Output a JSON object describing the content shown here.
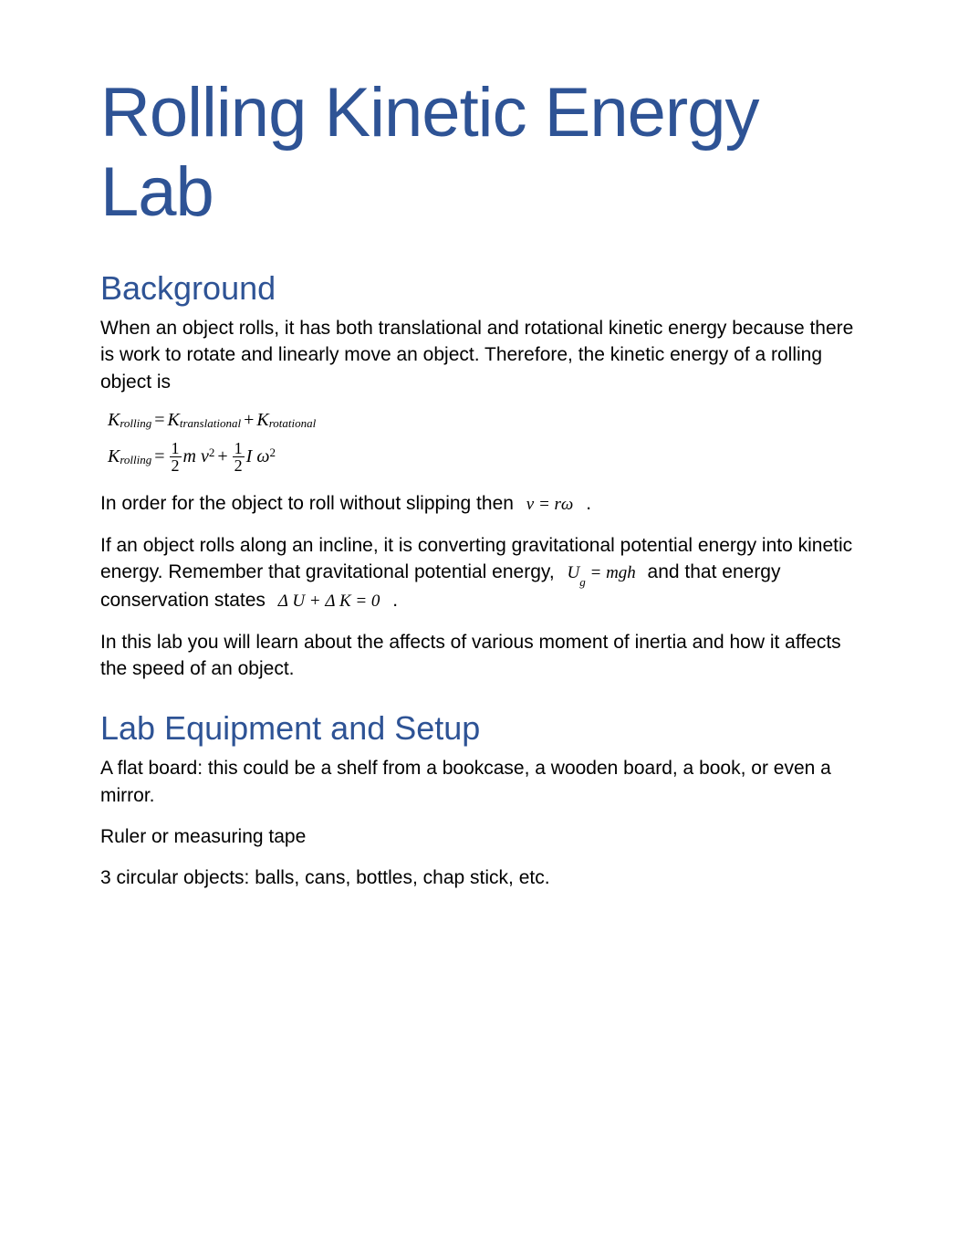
{
  "colors": {
    "heading": "#2e5395",
    "text": "#000000",
    "background": "#ffffff"
  },
  "typography": {
    "title_fontsize": 76,
    "heading_fontsize": 36,
    "body_fontsize": 21,
    "math_fontsize": 20
  },
  "title": "Rolling Kinetic Energy Lab",
  "sections": {
    "background": {
      "heading": "Background",
      "p1": "When an object rolls, it has both translational and rotational kinetic energy because there is work to rotate and linearly move an object. Therefore, the kinetic energy of a rolling object is",
      "eq1": {
        "lhs_var": "K",
        "lhs_sub": "rolling",
        "rhs_a_var": "K",
        "rhs_a_sub": "translational",
        "rhs_b_var": "K",
        "rhs_b_sub": "rotational"
      },
      "eq2": {
        "lhs_var": "K",
        "lhs_sub": "rolling",
        "t1_num": "1",
        "t1_den": "2",
        "t1_sym": "m v",
        "t1_pow": "2",
        "t2_num": "1",
        "t2_den": "2",
        "t2_sym": "I ω",
        "t2_pow": "2"
      },
      "p2_a": "In order for the object to roll without slipping then",
      "p2_math": "v = rω",
      "p2_b": ".",
      "p3_a": "If an object rolls along an incline, it is converting gravitational potential energy into kinetic energy. Remember that gravitational potential energy,",
      "p3_math1_var": "U",
      "p3_math1_sub": "g",
      "p3_math1_rhs": "= mgh",
      "p3_b": "and that energy conservation states",
      "p3_math2": "Δ U + Δ K = 0",
      "p3_c": ".",
      "p4": "In this lab you will learn about the affects of various moment of inertia and how it affects the speed of an object."
    },
    "equipment": {
      "heading": "Lab Equipment and Setup",
      "items": {
        "i1": "A flat board: this could be a shelf from a bookcase, a wooden board, a book, or even a mirror.",
        "i2": "Ruler or measuring tape",
        "i3": "3 circular objects: balls, cans, bottles, chap stick, etc."
      }
    }
  }
}
